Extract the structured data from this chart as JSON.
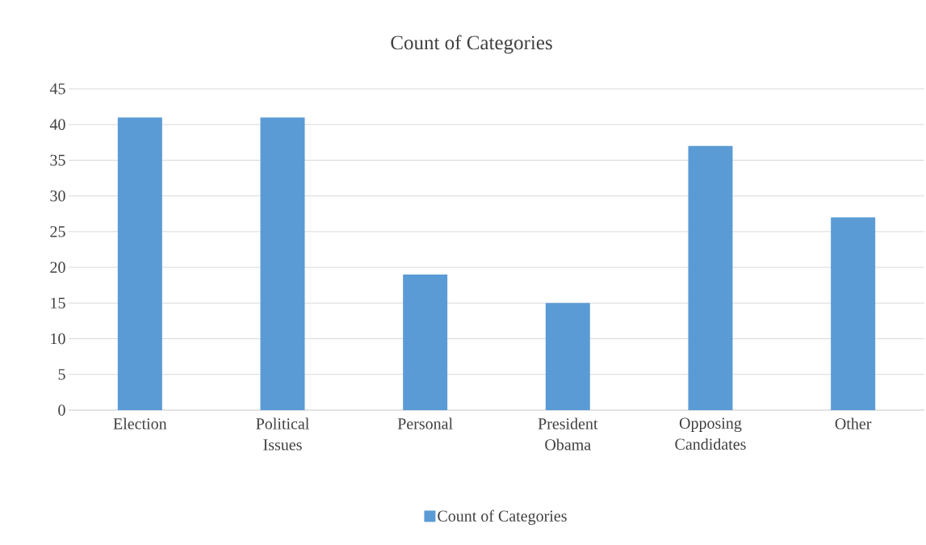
{
  "chart_data": {
    "type": "bar",
    "title": "Count of Categories",
    "categories": [
      "Election",
      "Political Issues",
      "Personal",
      "President Obama",
      "Opposing Candidates",
      "Other"
    ],
    "series": [
      {
        "name": "Count of Categories",
        "color": "#5b9bd5",
        "values": [
          41,
          41,
          19,
          15,
          37,
          27
        ]
      }
    ],
    "ylim": [
      0,
      45
    ],
    "yticks": [
      0,
      5,
      10,
      15,
      20,
      25,
      30,
      35,
      40,
      45
    ],
    "grid": "y",
    "legend": "bottom"
  }
}
